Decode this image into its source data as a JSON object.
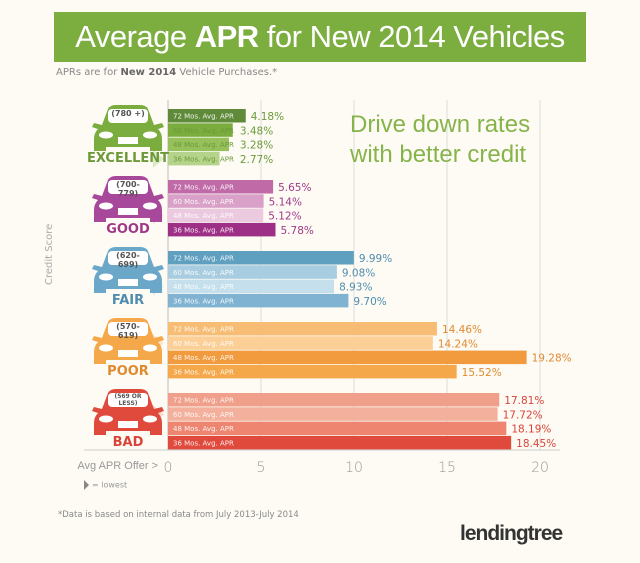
{
  "header": {
    "title_pre": "Average ",
    "title_bold": "APR",
    "title_post": " for New 2014 Vehicles",
    "subtitle_pre": "APRs are for ",
    "subtitle_bold": "New 2014",
    "subtitle_post": " Vehicle Purchases.*"
  },
  "tagline": "Drive down rates with better credit",
  "legend": "= lowest",
  "footnote": "*Data is based on internal data from July 2013-July 2014",
  "logo": "lendingtree",
  "chart_data": {
    "type": "bar",
    "orientation": "horizontal",
    "ylabel": "Credit Score",
    "xlabel": "Avg APR Offer >",
    "xlim": [
      0,
      20
    ],
    "xticks": [
      0,
      5,
      10,
      15,
      20
    ],
    "grid": true,
    "bar_labels": [
      "72 Mos. Avg. APR",
      "60 Mos. Avg. APR",
      "48 Mos. Avg. APR",
      "36 Mos. Avg. APR"
    ],
    "groups": [
      {
        "grade": "EXCELLENT",
        "range": "(780 +)",
        "values": [
          4.18,
          3.48,
          3.28,
          2.77
        ],
        "value_labels": [
          "4.18%",
          "3.48%",
          "3.28%",
          "2.77%"
        ],
        "lowest_index": 3,
        "colors": [
          "#5f8a3a",
          "#7aac3e",
          "#96c05a",
          "#b5d38a"
        ],
        "text_color": "#6c9a3a"
      },
      {
        "grade": "GOOD",
        "range": "(700-779)",
        "values": [
          5.65,
          5.14,
          5.12,
          5.78
        ],
        "value_labels": [
          "5.65%",
          "5.14%",
          "5.12%",
          "5.78%"
        ],
        "lowest_index": 2,
        "colors": [
          "#c06aa8",
          "#d9a0c8",
          "#ebc9df",
          "#9e2f86"
        ],
        "text_color": "#9e3a88"
      },
      {
        "grade": "FAIR",
        "range": "(620-699)",
        "values": [
          9.99,
          9.08,
          8.93,
          9.7
        ],
        "value_labels": [
          "9.99%",
          "9.08%",
          "8.93%",
          "9.70%"
        ],
        "lowest_index": 2,
        "colors": [
          "#5f9fc0",
          "#a8cde0",
          "#c5dfec",
          "#7fb3d1"
        ],
        "text_color": "#4f8db0"
      },
      {
        "grade": "POOR",
        "range": "(570-619)",
        "values": [
          14.46,
          14.24,
          19.28,
          15.52
        ],
        "value_labels": [
          "14.46%",
          "14.24%",
          "19.28%",
          "15.52%"
        ],
        "lowest_index": 1,
        "colors": [
          "#f8bd75",
          "#fbcf96",
          "#f29a3e",
          "#f5a849"
        ],
        "text_color": "#e08a30"
      },
      {
        "grade": "BAD",
        "range": "(569 OR LESS)",
        "values": [
          17.81,
          17.72,
          18.19,
          18.45
        ],
        "value_labels": [
          "17.81%",
          "17.72%",
          "18.19%",
          "18.45%"
        ],
        "lowest_index": 1,
        "colors": [
          "#f0a08a",
          "#f3b09c",
          "#ee8570",
          "#e04a3c"
        ],
        "text_color": "#d9443a"
      }
    ]
  }
}
